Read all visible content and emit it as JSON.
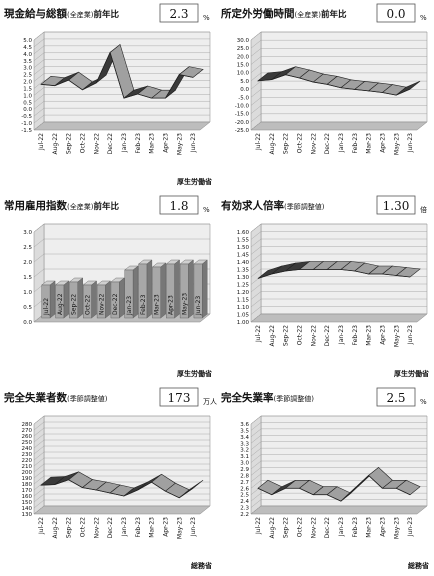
{
  "chart_data": [
    {
      "type": "line",
      "title": "現金給与総額",
      "title_note": "(全産業)",
      "title_suffix": "前年比",
      "latest": "2.3",
      "unit": "%",
      "source": "厚生労働省",
      "categories": [
        "Jul-22",
        "Aug-22",
        "Sep-22",
        "Oct-22",
        "Nov-22",
        "Dec-22",
        "Jan-23",
        "Feb-23",
        "Mar-23",
        "Apr-23",
        "May-23",
        "Jun-23"
      ],
      "values": [
        1.8,
        1.7,
        2.1,
        1.4,
        1.9,
        4.1,
        0.8,
        1.1,
        0.8,
        0.8,
        2.5,
        2.3
      ],
      "color": "#a0a0a0",
      "ylim": [
        -1.5,
        5
      ],
      "yticks": [
        -1.5,
        {
          "value": -1,
          "label": "-1.0"
        },
        -0.5,
        {
          "value": 0,
          "label": "0.0"
        },
        0.5,
        {
          "value": 1,
          "label": "1.0"
        },
        1.5,
        {
          "value": 2,
          "label": "2.0"
        },
        2.5,
        {
          "value": 3,
          "label": "3.0"
        },
        3.5,
        {
          "value": 4,
          "label": "4.0"
        },
        4.5,
        {
          "value": 5,
          "label": "5.0"
        }
      ],
      "grid": true
    },
    {
      "type": "line",
      "title": "所定外労働時間",
      "title_note": "(全産業)",
      "title_suffix": "前年比",
      "latest": "0.0",
      "unit": "%",
      "categories": [
        "Jul-22",
        "Aug-22",
        "Sep-22",
        "Oct-22",
        "Nov-22",
        "Dec-22",
        "Jan-23",
        "Feb-23",
        "Mar-23",
        "Apr-23",
        "May-23",
        "Jun-23"
      ],
      "values": [
        5.0,
        5.8,
        8.8,
        6.8,
        4.3,
        2.9,
        0.8,
        -0.2,
        -1.1,
        -2.1,
        -3.7,
        0.0
      ],
      "color": "#a0a0a0",
      "ylim": [
        -25,
        30
      ],
      "yticks": [
        {
          "value": -25,
          "label": "-25.0"
        },
        {
          "value": -20,
          "label": "-20.0"
        },
        {
          "value": -15,
          "label": "-15.0"
        },
        {
          "value": -10,
          "label": "-10.0"
        },
        {
          "value": -5,
          "label": "-5.0"
        },
        {
          "value": 0,
          "label": "0.0"
        },
        {
          "value": 5,
          "label": "5.0"
        },
        {
          "value": 10,
          "label": "10.0"
        },
        {
          "value": 15,
          "label": "15.0"
        },
        {
          "value": 20,
          "label": "20.0"
        },
        {
          "value": 25,
          "label": "25.0"
        },
        {
          "value": 30,
          "label": "30.0"
        }
      ],
      "grid": true
    },
    {
      "type": "bar",
      "title": "常用雇用指数",
      "title_note": "(全産業)",
      "title_suffix": "前年比",
      "latest": "1.8",
      "unit": "%",
      "source": "厚生労働省",
      "categories": [
        "Jul-22",
        "Aug-22",
        "Sep-22",
        "Oct-22",
        "Nov-22",
        "Dec-22",
        "Jan-23",
        "Feb-23",
        "Mar-23",
        "Apr-23",
        "May-23",
        "Jun-23"
      ],
      "values": [
        1.1,
        1.1,
        1.2,
        1.1,
        1.1,
        1.2,
        1.6,
        1.8,
        1.7,
        1.8,
        1.8,
        1.8
      ],
      "color": "#a8a8a8",
      "ylim": [
        0,
        3
      ],
      "yticks": [
        {
          "value": 0,
          "label": "0.0"
        },
        0.5,
        {
          "value": 1,
          "label": "1.0"
        },
        1.5,
        {
          "value": 2,
          "label": "2.0"
        },
        2.5,
        {
          "value": 3,
          "label": "3.0"
        }
      ],
      "grid": true
    },
    {
      "type": "line",
      "title": "有効求人倍率",
      "title_note": "(季節調整値)",
      "latest": "1.30",
      "unit": "倍",
      "source": "厚生労働省",
      "categories": [
        "Jul-22",
        "Aug-22",
        "Sep-22",
        "Oct-22",
        "Nov-22",
        "Dec-22",
        "Jan-23",
        "Feb-23",
        "Mar-23",
        "Apr-23",
        "May-23",
        "Jun-23"
      ],
      "values": [
        1.29,
        1.32,
        1.34,
        1.35,
        1.35,
        1.35,
        1.35,
        1.34,
        1.32,
        1.32,
        1.31,
        1.3
      ],
      "color": "#a0a0a0",
      "ylim": [
        1,
        1.6
      ],
      "yticks": [
        {
          "value": 1,
          "label": "1.00"
        },
        1.05,
        {
          "value": 1.1,
          "label": "1.10"
        },
        1.15,
        {
          "value": 1.2,
          "label": "1.20"
        },
        1.25,
        {
          "value": 1.3,
          "label": "1.30"
        },
        1.35,
        {
          "value": 1.4,
          "label": "1.40"
        },
        1.45,
        {
          "value": 1.5,
          "label": "1.50"
        },
        1.55,
        {
          "value": 1.6,
          "label": "1.60"
        }
      ],
      "grid": true
    },
    {
      "type": "line",
      "title": "完全失業者数",
      "title_note": "(季節調整値)",
      "latest": "173",
      "unit": "万人",
      "source": "総務省",
      "categories": [
        "Jul-22",
        "Aug-22",
        "Sep-22",
        "Oct-22",
        "Nov-22",
        "Dec-22",
        "Jan-23",
        "Feb-23",
        "Mar-23",
        "Apr-23",
        "May-23",
        "Jun-23"
      ],
      "values": [
        178,
        179,
        187,
        174,
        170,
        165,
        160,
        170,
        183,
        168,
        157,
        173
      ],
      "color": "#a0a0a0",
      "ylim": [
        130,
        280
      ],
      "yticks": [
        130,
        140,
        150,
        160,
        170,
        180,
        190,
        200,
        210,
        220,
        230,
        240,
        250,
        260,
        270,
        280
      ],
      "grid": true
    },
    {
      "type": "line",
      "title": "完全失業率",
      "title_note": "(季節調整値)",
      "latest": "2.5",
      "unit": "%",
      "source": "総務省",
      "categories": [
        "Jul-22",
        "Aug-22",
        "Sep-22",
        "Oct-22",
        "Nov-22",
        "Dec-22",
        "Jan-23",
        "Feb-23",
        "Mar-23",
        "Apr-23",
        "May-23",
        "Jun-23"
      ],
      "values": [
        2.6,
        2.5,
        2.6,
        2.6,
        2.5,
        2.5,
        2.4,
        2.6,
        2.8,
        2.6,
        2.6,
        2.5
      ],
      "color": "#a0a0a0",
      "ylim": [
        2.2,
        3.6
      ],
      "yticks": [
        2.2,
        2.3,
        2.4,
        2.5,
        2.6,
        2.7,
        2.8,
        2.9,
        {
          "value": 3,
          "label": "3.0"
        },
        3.1,
        3.2,
        3.3,
        3.4,
        3.5,
        3.6
      ],
      "grid": true
    }
  ]
}
